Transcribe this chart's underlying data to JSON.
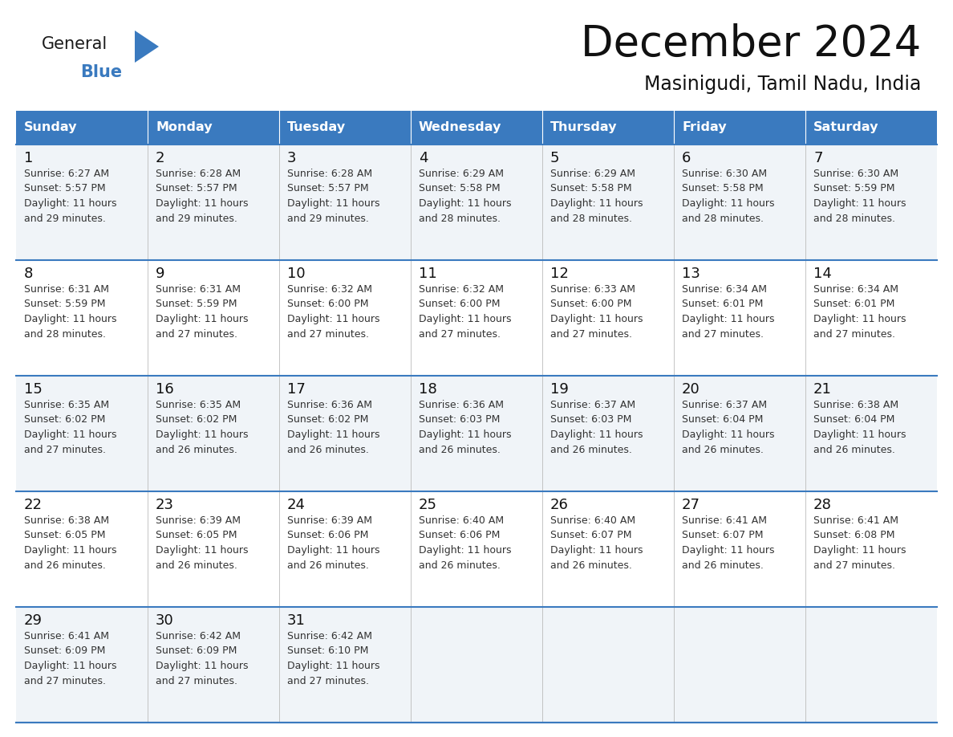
{
  "title": "December 2024",
  "subtitle": "Masinigudi, Tamil Nadu, India",
  "header_color": "#3a7abf",
  "header_text_color": "#ffffff",
  "cell_bg_odd": "#f0f4f8",
  "cell_bg_even": "#ffffff",
  "text_color": "#333333",
  "day_names": [
    "Sunday",
    "Monday",
    "Tuesday",
    "Wednesday",
    "Thursday",
    "Friday",
    "Saturday"
  ],
  "weeks": [
    [
      {
        "day": 1,
        "sunrise": "6:27 AM",
        "sunset": "5:57 PM",
        "daylight": "11 hours and 29 minutes."
      },
      {
        "day": 2,
        "sunrise": "6:28 AM",
        "sunset": "5:57 PM",
        "daylight": "11 hours and 29 minutes."
      },
      {
        "day": 3,
        "sunrise": "6:28 AM",
        "sunset": "5:57 PM",
        "daylight": "11 hours and 29 minutes."
      },
      {
        "day": 4,
        "sunrise": "6:29 AM",
        "sunset": "5:58 PM",
        "daylight": "11 hours and 28 minutes."
      },
      {
        "day": 5,
        "sunrise": "6:29 AM",
        "sunset": "5:58 PM",
        "daylight": "11 hours and 28 minutes."
      },
      {
        "day": 6,
        "sunrise": "6:30 AM",
        "sunset": "5:58 PM",
        "daylight": "11 hours and 28 minutes."
      },
      {
        "day": 7,
        "sunrise": "6:30 AM",
        "sunset": "5:59 PM",
        "daylight": "11 hours and 28 minutes."
      }
    ],
    [
      {
        "day": 8,
        "sunrise": "6:31 AM",
        "sunset": "5:59 PM",
        "daylight": "11 hours and 28 minutes."
      },
      {
        "day": 9,
        "sunrise": "6:31 AM",
        "sunset": "5:59 PM",
        "daylight": "11 hours and 27 minutes."
      },
      {
        "day": 10,
        "sunrise": "6:32 AM",
        "sunset": "6:00 PM",
        "daylight": "11 hours and 27 minutes."
      },
      {
        "day": 11,
        "sunrise": "6:32 AM",
        "sunset": "6:00 PM",
        "daylight": "11 hours and 27 minutes."
      },
      {
        "day": 12,
        "sunrise": "6:33 AM",
        "sunset": "6:00 PM",
        "daylight": "11 hours and 27 minutes."
      },
      {
        "day": 13,
        "sunrise": "6:34 AM",
        "sunset": "6:01 PM",
        "daylight": "11 hours and 27 minutes."
      },
      {
        "day": 14,
        "sunrise": "6:34 AM",
        "sunset": "6:01 PM",
        "daylight": "11 hours and 27 minutes."
      }
    ],
    [
      {
        "day": 15,
        "sunrise": "6:35 AM",
        "sunset": "6:02 PM",
        "daylight": "11 hours and 27 minutes."
      },
      {
        "day": 16,
        "sunrise": "6:35 AM",
        "sunset": "6:02 PM",
        "daylight": "11 hours and 26 minutes."
      },
      {
        "day": 17,
        "sunrise": "6:36 AM",
        "sunset": "6:02 PM",
        "daylight": "11 hours and 26 minutes."
      },
      {
        "day": 18,
        "sunrise": "6:36 AM",
        "sunset": "6:03 PM",
        "daylight": "11 hours and 26 minutes."
      },
      {
        "day": 19,
        "sunrise": "6:37 AM",
        "sunset": "6:03 PM",
        "daylight": "11 hours and 26 minutes."
      },
      {
        "day": 20,
        "sunrise": "6:37 AM",
        "sunset": "6:04 PM",
        "daylight": "11 hours and 26 minutes."
      },
      {
        "day": 21,
        "sunrise": "6:38 AM",
        "sunset": "6:04 PM",
        "daylight": "11 hours and 26 minutes."
      }
    ],
    [
      {
        "day": 22,
        "sunrise": "6:38 AM",
        "sunset": "6:05 PM",
        "daylight": "11 hours and 26 minutes."
      },
      {
        "day": 23,
        "sunrise": "6:39 AM",
        "sunset": "6:05 PM",
        "daylight": "11 hours and 26 minutes."
      },
      {
        "day": 24,
        "sunrise": "6:39 AM",
        "sunset": "6:06 PM",
        "daylight": "11 hours and 26 minutes."
      },
      {
        "day": 25,
        "sunrise": "6:40 AM",
        "sunset": "6:06 PM",
        "daylight": "11 hours and 26 minutes."
      },
      {
        "day": 26,
        "sunrise": "6:40 AM",
        "sunset": "6:07 PM",
        "daylight": "11 hours and 26 minutes."
      },
      {
        "day": 27,
        "sunrise": "6:41 AM",
        "sunset": "6:07 PM",
        "daylight": "11 hours and 26 minutes."
      },
      {
        "day": 28,
        "sunrise": "6:41 AM",
        "sunset": "6:08 PM",
        "daylight": "11 hours and 27 minutes."
      }
    ],
    [
      {
        "day": 29,
        "sunrise": "6:41 AM",
        "sunset": "6:09 PM",
        "daylight": "11 hours and 27 minutes."
      },
      {
        "day": 30,
        "sunrise": "6:42 AM",
        "sunset": "6:09 PM",
        "daylight": "11 hours and 27 minutes."
      },
      {
        "day": 31,
        "sunrise": "6:42 AM",
        "sunset": "6:10 PM",
        "daylight": "11 hours and 27 minutes."
      },
      null,
      null,
      null,
      null
    ]
  ],
  "logo_general_color": "#1a1a1a",
  "logo_blue_color": "#3a7abf",
  "line_color": "#3a7abf",
  "n_cols": 7,
  "n_rows": 5
}
